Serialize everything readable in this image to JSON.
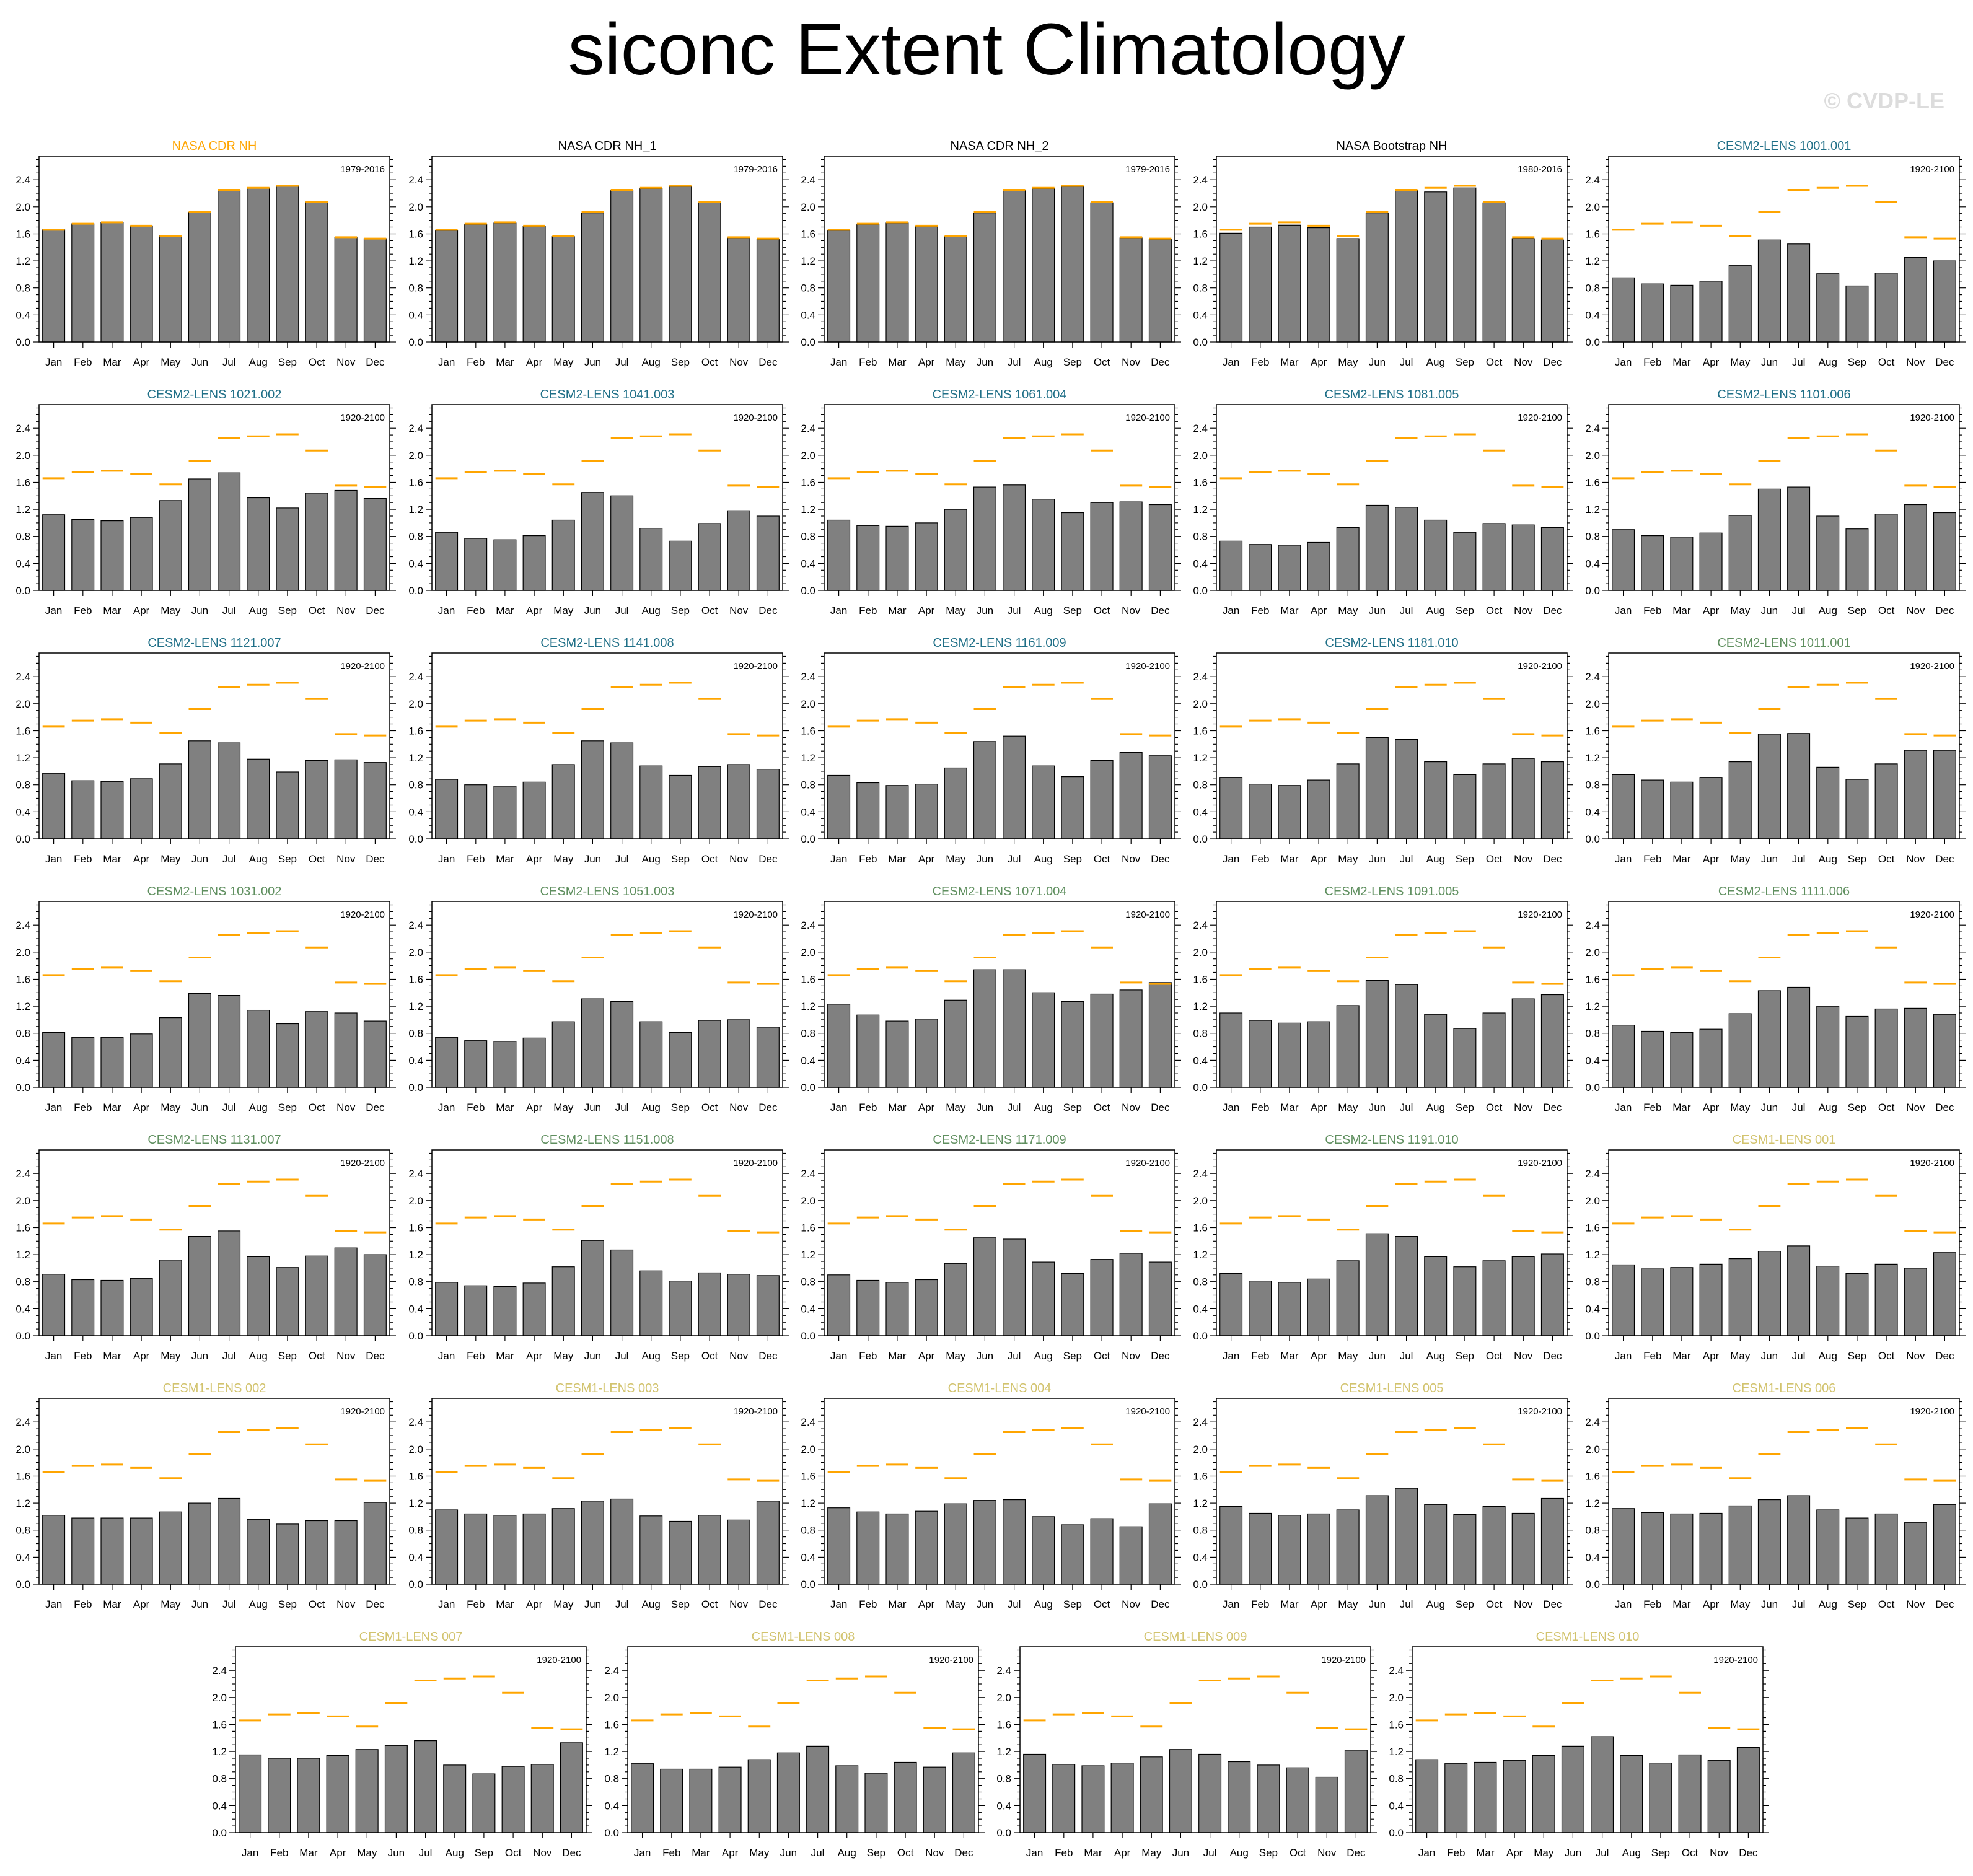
{
  "title": "siconc Extent Climatology",
  "watermark": "© CVDP-LE",
  "colors": {
    "bar": "#808080",
    "obs_line": "#ffa500",
    "nasa_title": "#ffa500",
    "obs_title": "#000000",
    "cesm2a_title": "#1f6f87",
    "cesm2b_title": "#5f8f5f",
    "cesm1_title": "#d2c36e"
  },
  "chart_data": {
    "type": "bar",
    "categories": [
      "Jan",
      "Feb",
      "Mar",
      "Apr",
      "May",
      "Jun",
      "Jul",
      "Aug",
      "Sep",
      "Oct",
      "Nov",
      "Dec"
    ],
    "yticks": [
      "0.0",
      "0.4",
      "0.8",
      "1.2",
      "1.6",
      "2.0",
      "2.4"
    ],
    "ylim": [
      0,
      2.75
    ],
    "reference_line": [
      1.66,
      1.75,
      1.77,
      1.72,
      1.57,
      1.92,
      2.25,
      2.28,
      2.31,
      2.07,
      1.55,
      1.53
    ],
    "panels": [
      {
        "title": "NASA CDR NH",
        "years": "1979-2016",
        "group": "nasa",
        "values": [
          1.66,
          1.75,
          1.77,
          1.72,
          1.57,
          1.92,
          2.25,
          2.28,
          2.31,
          2.07,
          1.55,
          1.53
        ]
      },
      {
        "title": "NASA CDR NH_1",
        "years": "1979-2016",
        "group": "obs",
        "values": [
          1.65,
          1.74,
          1.76,
          1.71,
          1.56,
          1.91,
          2.24,
          2.27,
          2.3,
          2.06,
          1.54,
          1.52
        ]
      },
      {
        "title": "NASA CDR NH_2",
        "years": "1979-2016",
        "group": "obs",
        "values": [
          1.65,
          1.74,
          1.76,
          1.71,
          1.56,
          1.91,
          2.24,
          2.27,
          2.3,
          2.06,
          1.54,
          1.52
        ]
      },
      {
        "title": "NASA Bootstrap NH",
        "years": "1980-2016",
        "group": "obs",
        "values": [
          1.61,
          1.7,
          1.73,
          1.69,
          1.53,
          1.91,
          2.24,
          2.22,
          2.28,
          2.06,
          1.53,
          1.51
        ]
      },
      {
        "title": "CESM2-LENS 1001.001",
        "years": "1920-2100",
        "group": "cesm2a",
        "values": [
          0.95,
          0.86,
          0.84,
          0.9,
          1.13,
          1.51,
          1.45,
          1.01,
          0.83,
          1.02,
          1.25,
          1.2
        ]
      },
      {
        "title": "CESM2-LENS 1021.002",
        "years": "1920-2100",
        "group": "cesm2a",
        "values": [
          1.12,
          1.05,
          1.03,
          1.08,
          1.33,
          1.65,
          1.74,
          1.37,
          1.22,
          1.44,
          1.48,
          1.36
        ]
      },
      {
        "title": "CESM2-LENS 1041.003",
        "years": "1920-2100",
        "group": "cesm2a",
        "values": [
          0.86,
          0.77,
          0.75,
          0.81,
          1.04,
          1.45,
          1.4,
          0.92,
          0.73,
          0.99,
          1.18,
          1.1
        ]
      },
      {
        "title": "CESM2-LENS 1061.004",
        "years": "1920-2100",
        "group": "cesm2a",
        "values": [
          1.04,
          0.96,
          0.95,
          1.0,
          1.2,
          1.53,
          1.56,
          1.35,
          1.15,
          1.3,
          1.31,
          1.27
        ]
      },
      {
        "title": "CESM2-LENS 1081.005",
        "years": "1920-2100",
        "group": "cesm2a",
        "values": [
          0.73,
          0.68,
          0.67,
          0.71,
          0.93,
          1.26,
          1.23,
          1.04,
          0.86,
          0.99,
          0.97,
          0.93
        ]
      },
      {
        "title": "CESM2-LENS 1101.006",
        "years": "1920-2100",
        "group": "cesm2a",
        "values": [
          0.9,
          0.81,
          0.79,
          0.85,
          1.11,
          1.5,
          1.53,
          1.1,
          0.91,
          1.13,
          1.27,
          1.15
        ]
      },
      {
        "title": "CESM2-LENS 1121.007",
        "years": "1920-2100",
        "group": "cesm2a",
        "values": [
          0.97,
          0.86,
          0.85,
          0.89,
          1.11,
          1.45,
          1.42,
          1.18,
          0.99,
          1.16,
          1.17,
          1.13
        ]
      },
      {
        "title": "CESM2-LENS 1141.008",
        "years": "1920-2100",
        "group": "cesm2a",
        "values": [
          0.88,
          0.8,
          0.78,
          0.84,
          1.1,
          1.45,
          1.42,
          1.08,
          0.94,
          1.07,
          1.1,
          1.03
        ]
      },
      {
        "title": "CESM2-LENS 1161.009",
        "years": "1920-2100",
        "group": "cesm2a",
        "values": [
          0.94,
          0.83,
          0.79,
          0.81,
          1.05,
          1.44,
          1.52,
          1.08,
          0.92,
          1.16,
          1.28,
          1.23
        ]
      },
      {
        "title": "CESM2-LENS 1181.010",
        "years": "1920-2100",
        "group": "cesm2a",
        "values": [
          0.91,
          0.81,
          0.79,
          0.87,
          1.11,
          1.5,
          1.47,
          1.14,
          0.95,
          1.11,
          1.19,
          1.14
        ]
      },
      {
        "title": "CESM2-LENS 1011.001",
        "years": "1920-2100",
        "group": "cesm2b",
        "values": [
          0.95,
          0.87,
          0.84,
          0.91,
          1.14,
          1.55,
          1.56,
          1.06,
          0.88,
          1.11,
          1.31,
          1.31
        ]
      },
      {
        "title": "CESM2-LENS 1031.002",
        "years": "1920-2100",
        "group": "cesm2b",
        "values": [
          0.81,
          0.74,
          0.74,
          0.79,
          1.03,
          1.39,
          1.36,
          1.14,
          0.94,
          1.12,
          1.1,
          0.98
        ]
      },
      {
        "title": "CESM2-LENS 1051.003",
        "years": "1920-2100",
        "group": "cesm2b",
        "values": [
          0.74,
          0.69,
          0.68,
          0.73,
          0.97,
          1.31,
          1.27,
          0.97,
          0.81,
          0.99,
          1.0,
          0.89
        ]
      },
      {
        "title": "CESM2-LENS 1071.004",
        "years": "1920-2100",
        "group": "cesm2b",
        "values": [
          1.23,
          1.07,
          0.98,
          1.01,
          1.29,
          1.74,
          1.74,
          1.4,
          1.27,
          1.38,
          1.44,
          1.55
        ]
      },
      {
        "title": "CESM2-LENS 1091.005",
        "years": "1920-2100",
        "group": "cesm2b",
        "values": [
          1.1,
          0.99,
          0.95,
          0.97,
          1.21,
          1.58,
          1.52,
          1.08,
          0.87,
          1.1,
          1.31,
          1.37
        ]
      },
      {
        "title": "CESM2-LENS 1111.006",
        "years": "1920-2100",
        "group": "cesm2b",
        "values": [
          0.92,
          0.83,
          0.81,
          0.86,
          1.09,
          1.43,
          1.48,
          1.2,
          1.05,
          1.16,
          1.17,
          1.08
        ]
      },
      {
        "title": "CESM2-LENS 1131.007",
        "years": "1920-2100",
        "group": "cesm2b",
        "values": [
          0.91,
          0.83,
          0.82,
          0.85,
          1.12,
          1.47,
          1.55,
          1.17,
          1.01,
          1.18,
          1.3,
          1.2
        ]
      },
      {
        "title": "CESM2-LENS 1151.008",
        "years": "1920-2100",
        "group": "cesm2b",
        "values": [
          0.79,
          0.74,
          0.73,
          0.78,
          1.02,
          1.41,
          1.27,
          0.96,
          0.81,
          0.93,
          0.91,
          0.89
        ]
      },
      {
        "title": "CESM2-LENS 1171.009",
        "years": "1920-2100",
        "group": "cesm2b",
        "values": [
          0.9,
          0.82,
          0.79,
          0.83,
          1.07,
          1.45,
          1.43,
          1.09,
          0.92,
          1.13,
          1.22,
          1.09
        ]
      },
      {
        "title": "CESM2-LENS 1191.010",
        "years": "1920-2100",
        "group": "cesm2b",
        "values": [
          0.92,
          0.81,
          0.79,
          0.84,
          1.11,
          1.51,
          1.47,
          1.17,
          1.02,
          1.11,
          1.17,
          1.21
        ]
      },
      {
        "title": "CESM1-LENS 001",
        "years": "1920-2100",
        "group": "cesm1",
        "values": [
          1.05,
          0.99,
          1.01,
          1.06,
          1.14,
          1.25,
          1.33,
          1.03,
          0.92,
          1.06,
          1.0,
          1.23
        ]
      },
      {
        "title": "CESM1-LENS 002",
        "years": "1920-2100",
        "group": "cesm1",
        "values": [
          1.02,
          0.98,
          0.98,
          0.98,
          1.07,
          1.2,
          1.27,
          0.96,
          0.89,
          0.94,
          0.94,
          1.21
        ]
      },
      {
        "title": "CESM1-LENS 003",
        "years": "1920-2100",
        "group": "cesm1",
        "values": [
          1.1,
          1.04,
          1.02,
          1.04,
          1.12,
          1.23,
          1.26,
          1.01,
          0.93,
          1.02,
          0.95,
          1.23
        ]
      },
      {
        "title": "CESM1-LENS 004",
        "years": "1920-2100",
        "group": "cesm1",
        "values": [
          1.13,
          1.07,
          1.04,
          1.08,
          1.19,
          1.24,
          1.25,
          1.0,
          0.88,
          0.97,
          0.85,
          1.19
        ]
      },
      {
        "title": "CESM1-LENS 005",
        "years": "1920-2100",
        "group": "cesm1",
        "values": [
          1.15,
          1.05,
          1.02,
          1.04,
          1.1,
          1.31,
          1.42,
          1.18,
          1.03,
          1.15,
          1.05,
          1.27
        ]
      },
      {
        "title": "CESM1-LENS 006",
        "years": "1920-2100",
        "group": "cesm1",
        "values": [
          1.12,
          1.06,
          1.04,
          1.05,
          1.16,
          1.25,
          1.31,
          1.1,
          0.98,
          1.04,
          0.91,
          1.18
        ]
      },
      {
        "title": "CESM1-LENS 007",
        "years": "1920-2100",
        "group": "cesm1",
        "values": [
          1.15,
          1.1,
          1.1,
          1.14,
          1.23,
          1.29,
          1.36,
          1.0,
          0.87,
          0.98,
          1.01,
          1.33
        ]
      },
      {
        "title": "CESM1-LENS 008",
        "years": "1920-2100",
        "group": "cesm1",
        "values": [
          1.02,
          0.94,
          0.94,
          0.97,
          1.08,
          1.18,
          1.28,
          0.99,
          0.88,
          1.04,
          0.97,
          1.18
        ]
      },
      {
        "title": "CESM1-LENS 009",
        "years": "1920-2100",
        "group": "cesm1",
        "values": [
          1.16,
          1.01,
          0.99,
          1.03,
          1.12,
          1.23,
          1.16,
          1.05,
          1.0,
          0.96,
          0.82,
          1.22
        ]
      },
      {
        "title": "CESM1-LENS 010",
        "years": "1920-2100",
        "group": "cesm1",
        "values": [
          1.08,
          1.02,
          1.04,
          1.07,
          1.14,
          1.28,
          1.42,
          1.14,
          1.03,
          1.15,
          1.07,
          1.26
        ]
      }
    ]
  }
}
